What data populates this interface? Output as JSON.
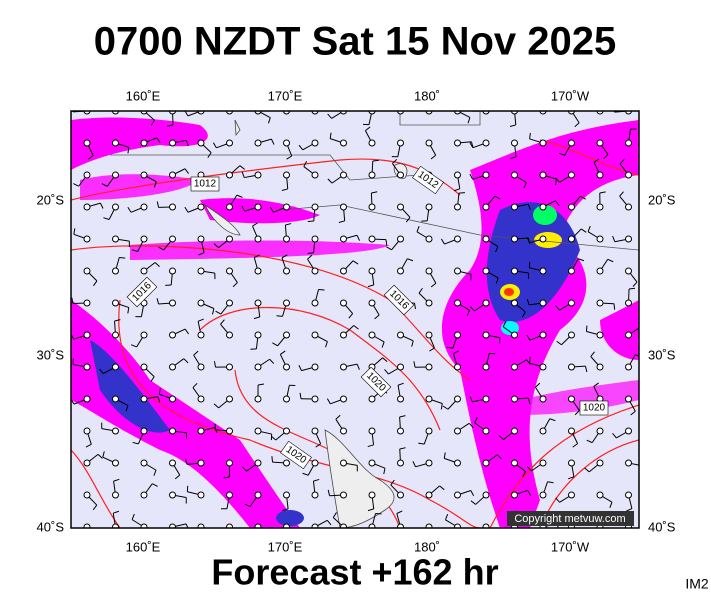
{
  "header": {
    "title": "0700 NZDT Sat 15 Nov 2025"
  },
  "map": {
    "top_labels": [
      "160˚E",
      "170˚E",
      "180˚",
      "170˚W"
    ],
    "bottom_labels": [
      "160˚E",
      "170˚E",
      "180˚",
      "170˚W"
    ],
    "left_labels": [
      "20˚S",
      "30˚S",
      "40˚S"
    ],
    "right_labels": [
      "20˚S",
      "30˚S",
      "40˚S"
    ],
    "isobar_labels": [
      "1012",
      "1012",
      "1016",
      "1016",
      "1020",
      "1020",
      "1020"
    ],
    "copyright": "Copyright metvuw.com"
  },
  "footer": {
    "forecast": "Forecast +162 hr",
    "id": "IM2"
  }
}
